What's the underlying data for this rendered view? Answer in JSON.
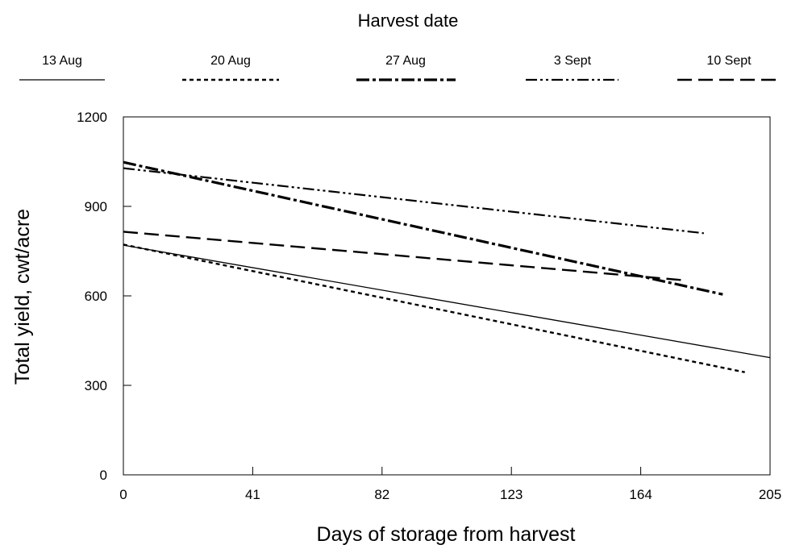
{
  "chart_data": {
    "type": "line",
    "title": "Harvest date",
    "xlabel": "Days of storage from harvest",
    "ylabel": "Total yield, cwt/acre",
    "xlim": [
      0,
      205
    ],
    "ylim": [
      0,
      1200
    ],
    "xticks": [
      "0",
      "41",
      "82",
      "123",
      "164",
      "205"
    ],
    "yticks": [
      "0",
      "300",
      "600",
      "900",
      "1200"
    ],
    "grid": false,
    "legend_position": "top",
    "series": [
      {
        "name": "13 Aug",
        "style": "solid",
        "stroke_width": 1.3,
        "points": [
          [
            0,
            770
          ],
          [
            205,
            393
          ]
        ]
      },
      {
        "name": "20 Aug",
        "style": "dashed",
        "stroke_width": 2.4,
        "points": [
          [
            0,
            772
          ],
          [
            197,
            344
          ]
        ]
      },
      {
        "name": "27 Aug",
        "style": "dash-dot-thick",
        "stroke_width": 3.2,
        "points": [
          [
            0,
            1048
          ],
          [
            190,
            605
          ]
        ]
      },
      {
        "name": "3 Sept",
        "style": "dash-dot-dot",
        "stroke_width": 2.2,
        "points": [
          [
            0,
            1028
          ],
          [
            184,
            810
          ]
        ]
      },
      {
        "name": "10 Sept",
        "style": "long-dash",
        "stroke_width": 2.4,
        "points": [
          [
            0,
            815
          ],
          [
            177,
            653
          ]
        ]
      }
    ]
  }
}
